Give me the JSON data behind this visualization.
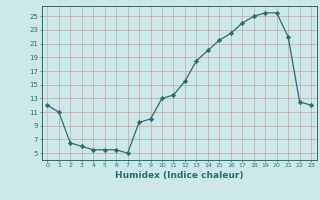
{
  "x": [
    0,
    1,
    2,
    3,
    4,
    5,
    6,
    7,
    8,
    9,
    10,
    11,
    12,
    13,
    14,
    15,
    16,
    17,
    18,
    19,
    20,
    21,
    22,
    23
  ],
  "y": [
    12,
    11,
    6.5,
    6,
    5.5,
    5.5,
    5.5,
    5,
    9.5,
    10,
    13,
    13.5,
    15.5,
    18.5,
    20,
    21.5,
    22.5,
    24,
    25,
    25.5,
    25.5,
    22,
    12.5,
    12
  ],
  "xlabel": "Humidex (Indice chaleur)",
  "yticks": [
    5,
    7,
    9,
    11,
    13,
    15,
    17,
    19,
    21,
    23,
    25
  ],
  "xticks": [
    0,
    1,
    2,
    3,
    4,
    5,
    6,
    7,
    8,
    9,
    10,
    11,
    12,
    13,
    14,
    15,
    16,
    17,
    18,
    19,
    20,
    21,
    22,
    23
  ],
  "line_color": "#2d6e6e",
  "marker": "D",
  "marker_size": 2.2,
  "bg_color": "#cce8e8",
  "grid_color": "#b0c8c8"
}
